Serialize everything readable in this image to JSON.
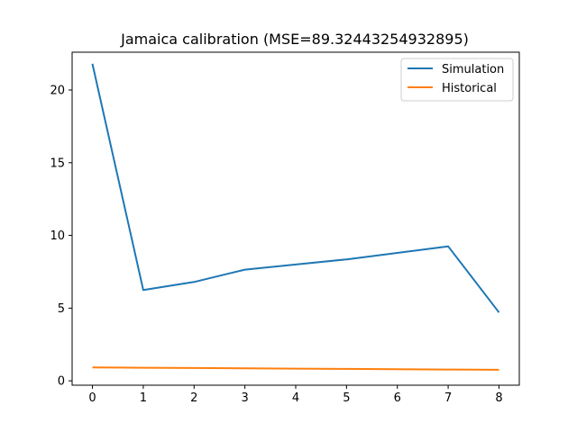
{
  "chart_data": {
    "type": "line",
    "title": "Jamaica calibration (MSE=89.32443254932895)",
    "xlabel": "",
    "ylabel": "",
    "x": [
      0,
      1,
      2,
      3,
      4,
      5,
      6,
      7,
      8
    ],
    "xlim": [
      -0.4,
      8.4
    ],
    "ylim": [
      -0.3,
      22.6
    ],
    "xticks": [
      "0",
      "1",
      "2",
      "3",
      "4",
      "5",
      "6",
      "7",
      "8"
    ],
    "yticks": [
      "0",
      "5",
      "10",
      "15",
      "20"
    ],
    "grid": false,
    "legend_position": "upper right",
    "series": [
      {
        "name": "Simulation",
        "color": "#1f77b4",
        "values": [
          21.8,
          6.25,
          6.8,
          7.65,
          8.0,
          8.35,
          8.8,
          9.25,
          4.7
        ]
      },
      {
        "name": "Historical",
        "color": "#ff7f0e",
        "values": [
          0.92,
          0.9,
          0.88,
          0.86,
          0.84,
          0.82,
          0.8,
          0.78,
          0.76
        ]
      }
    ]
  }
}
